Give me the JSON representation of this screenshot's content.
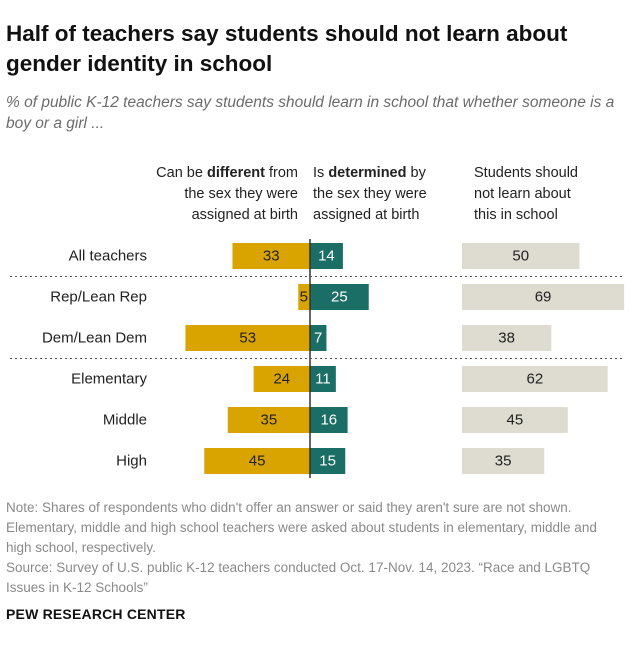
{
  "title": "Half of teachers say students should not learn about gender identity in school",
  "subtitle": "% of public K-12 teachers say students should learn in school that whether someone is a boy or a girl ...",
  "columns": {
    "different": {
      "pre": "Can be ",
      "bold": "different",
      "post": " from",
      "line2": "the sex they were",
      "line3": "assigned at birth"
    },
    "determined": {
      "pre": "Is ",
      "bold": "determined",
      "post": " by",
      "line2": "the sex they were",
      "line3": "assigned at birth"
    },
    "notlearn": {
      "line1": "Students should",
      "line2": "not learn about",
      "line3": "this in school"
    }
  },
  "colors": {
    "different": "#d9a400",
    "determined": "#1b6e65",
    "notlearn": "#dedbd0",
    "divider": "#555555"
  },
  "chart_data": {
    "type": "bar",
    "orientation": "horizontal",
    "categories": [
      "All teachers",
      "Rep/Lean Rep",
      "Dem/Lean Dem",
      "Elementary",
      "Middle",
      "High"
    ],
    "series": [
      {
        "name": "Can be different from the sex they were assigned at birth",
        "values": [
          33,
          5,
          53,
          24,
          35,
          45
        ]
      },
      {
        "name": "Is determined by the sex they were assigned at birth",
        "values": [
          14,
          25,
          7,
          11,
          16,
          15
        ]
      },
      {
        "name": "Students should not learn about this in school",
        "values": [
          50,
          69,
          38,
          62,
          45,
          35
        ]
      }
    ],
    "group_dividers_after": [
      "All teachers",
      "Dem/Lean Dem"
    ]
  },
  "note": "Note: Shares of respondents who didn't offer an answer or said they aren't sure are not shown. Elementary, middle and high school teachers were asked about students in elementary, middle and high school, respectively.",
  "source": "Source: Survey of U.S. public K-12 teachers conducted Oct. 17-Nov. 14, 2023. “Race and LGBTQ Issues in K-12 Schools”",
  "brand": "PEW RESEARCH CENTER"
}
